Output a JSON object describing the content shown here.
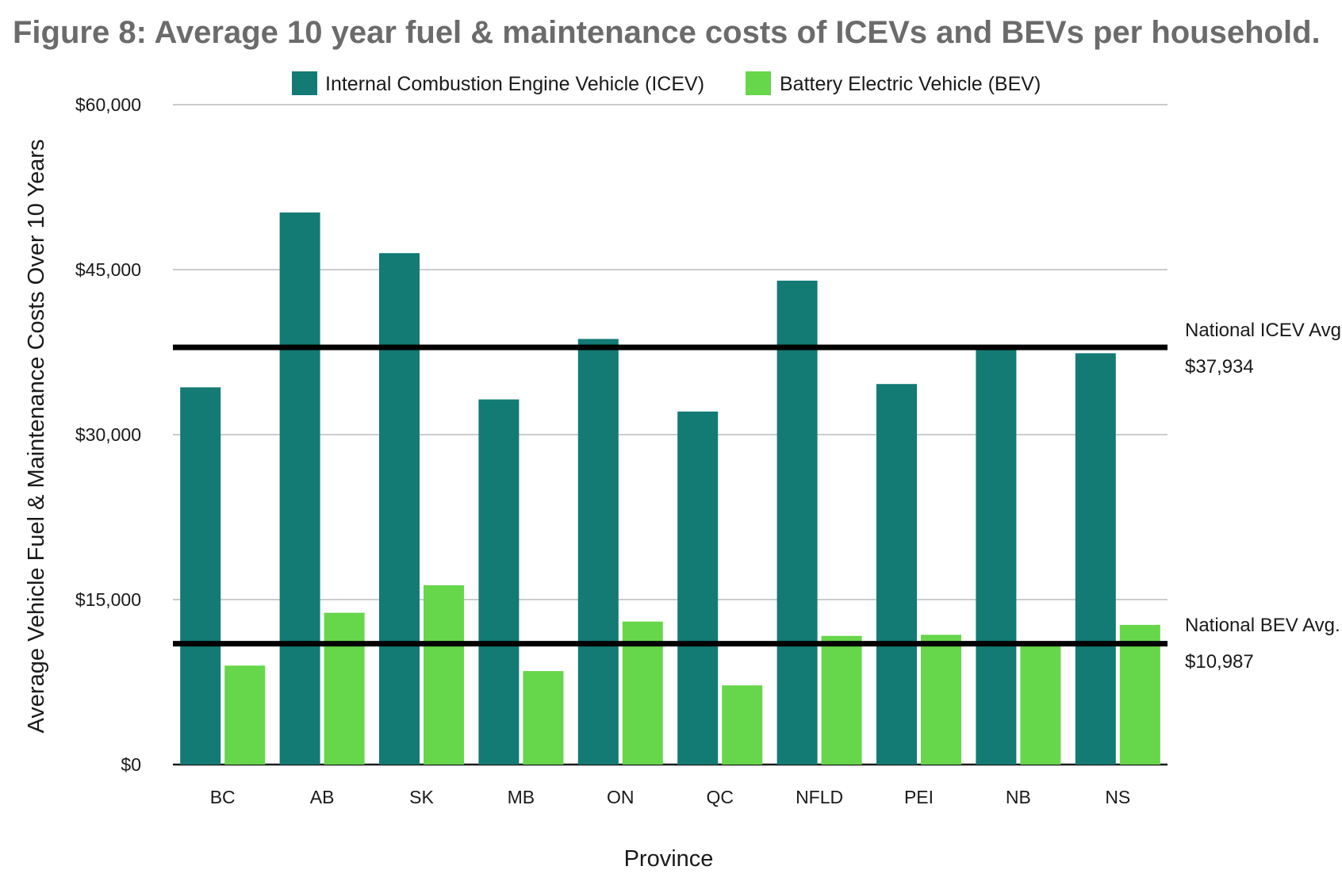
{
  "chart_data": {
    "type": "bar",
    "title": "Figure 8: Average 10 year fuel & maintenance costs of ICEVs and BEVs per household.",
    "xlabel": "Province",
    "ylabel": "Average Vehicle Fuel & Maintenance Costs Over 10 Years",
    "categories": [
      "BC",
      "AB",
      "SK",
      "MB",
      "ON",
      "QC",
      "NFLD",
      "PEI",
      "NB",
      "NS"
    ],
    "series": [
      {
        "name": "Internal Combustion Engine Vehicle (ICEV)",
        "color": "#137a74",
        "values": [
          34300,
          50200,
          46500,
          33200,
          38700,
          32100,
          44000,
          34600,
          37900,
          37400
        ]
      },
      {
        "name": "Battery Electric Vehicle (BEV)",
        "color": "#66d64a",
        "values": [
          9000,
          13800,
          16300,
          8500,
          13000,
          7200,
          11700,
          11800,
          10900,
          12700
        ]
      }
    ],
    "ylim": [
      0,
      60000
    ],
    "yticks": [
      0,
      15000,
      30000,
      45000,
      60000
    ],
    "ytick_labels": [
      "$0",
      "$15,000",
      "$30,000",
      "$45,000",
      "$60,000"
    ],
    "grid": true,
    "legend_position": "top",
    "reference_lines": [
      {
        "label": "National ICEV Avg.",
        "value": 37934,
        "value_label": "$37,934"
      },
      {
        "label": "National BEV Avg.",
        "value": 10987,
        "value_label": "$10,987"
      }
    ]
  }
}
